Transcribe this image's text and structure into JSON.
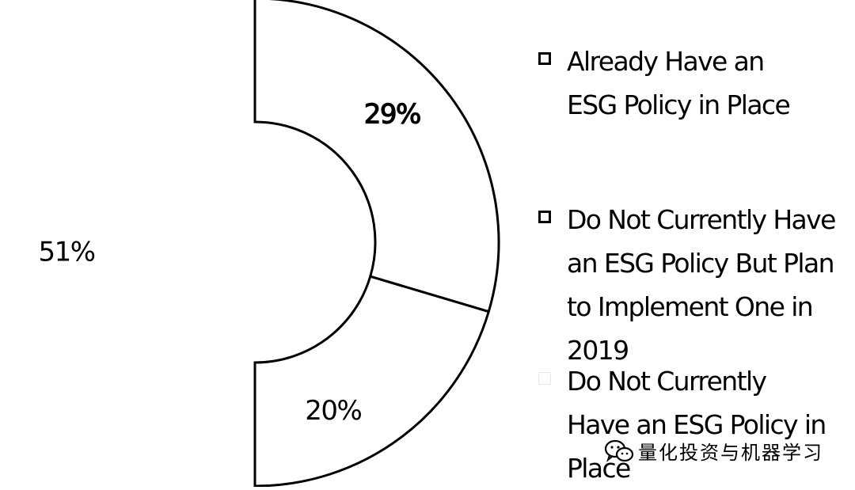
{
  "chart_data": {
    "type": "pie",
    "style": "half-donut",
    "slices": [
      {
        "label": "Already Have an ESG Policy in Place",
        "value": 29,
        "display": "29%"
      },
      {
        "label": "Do Not Currently Have an ESG Policy But Plan to Implement One in 2019",
        "value": 20,
        "display": "20%"
      },
      {
        "label": "Do Not Currently Have an ESG Policy in Place",
        "value": 51,
        "display": "51%"
      }
    ],
    "legend_position": "right",
    "colors": {
      "slice_fill": "#ffffff",
      "slice_stroke": "#000000",
      "text": "#000000"
    }
  },
  "legend": {
    "items": [
      "Already Have an ESG Policy in Place",
      "Do Not Currently Have an ESG Policy But Plan to Implement One in 2019",
      "Do Not Currently Have an ESG Policy in Place"
    ]
  },
  "watermark": {
    "text": "量化投资与机器学习",
    "icon": "wechat-icon"
  }
}
